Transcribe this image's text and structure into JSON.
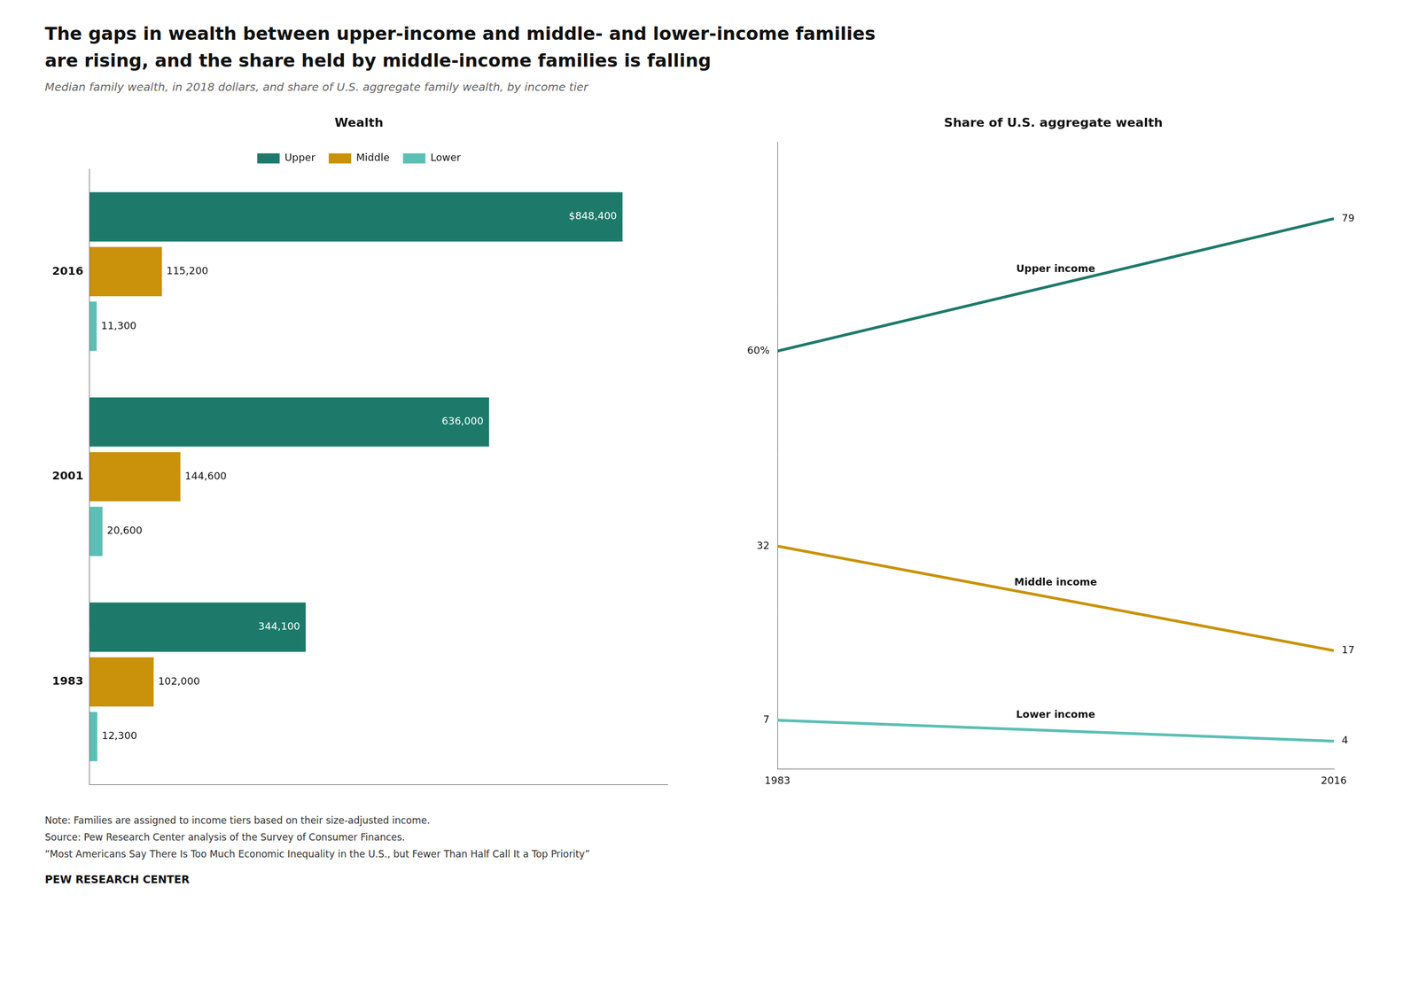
{
  "title": [
    "The gaps in wealth between upper-income and middle- and lower-income families",
    "are rising, and the share held by middle-income families is falling"
  ],
  "subtitle": "Median family wealth, in 2018 dollars, and share of U.S. aggregate family wealth, by income tier",
  "notes": [
    "Note: Families are assigned to income tiers based on their size-adjusted income.",
    "Source: Pew Research Center analysis of the Survey of Consumer Finances.",
    "“Most Americans Say There Is Too Much Economic Inequality in the U.S., but Fewer Than Half Call It a Top Priority”"
  ],
  "footer": "PEW RESEARCH CENTER",
  "chart_data": [
    {
      "type": "bar",
      "title": "Wealth",
      "orientation": "horizontal",
      "categories": [
        "1983",
        "2001",
        "2016"
      ],
      "series": [
        {
          "name": "Upper",
          "color": "#1d7a6b",
          "values": [
            344100,
            636000,
            848400
          ],
          "value_labels": [
            "344,100",
            "636,000",
            "$848,400"
          ]
        },
        {
          "name": "Middle",
          "color": "#c9920a",
          "values": [
            102000,
            144600,
            115200
          ],
          "value_labels": [
            "102,000",
            "144,600",
            "115,200"
          ]
        },
        {
          "name": "Lower",
          "color": "#5bbfb5",
          "values": [
            12300,
            20600,
            11300
          ],
          "value_labels": [
            "12,300",
            "20,600",
            "11,300"
          ]
        }
      ],
      "xlim": [
        0,
        920000
      ],
      "tick_labels": "y",
      "grid": false,
      "legend": "top",
      "data_labels": true
    },
    {
      "type": "line",
      "title": "Share of U.S. aggregate wealth",
      "x": [
        1983,
        2016
      ],
      "series": [
        {
          "name": "Upper income",
          "color": "#1d7a6b",
          "values": [
            60,
            79
          ],
          "value_labels": [
            "60%",
            "79"
          ]
        },
        {
          "name": "Middle income",
          "color": "#c9920a",
          "values": [
            32,
            17
          ]
        },
        {
          "name": "Lower income",
          "color": "#5bbfb5",
          "values": [
            7,
            4
          ]
        }
      ],
      "xlim": [
        1983,
        2016
      ],
      "xticks": [
        1983,
        2016
      ],
      "ylim": [
        0,
        90
      ],
      "tick_labels": "x",
      "grid": false,
      "data_labels": true
    }
  ]
}
